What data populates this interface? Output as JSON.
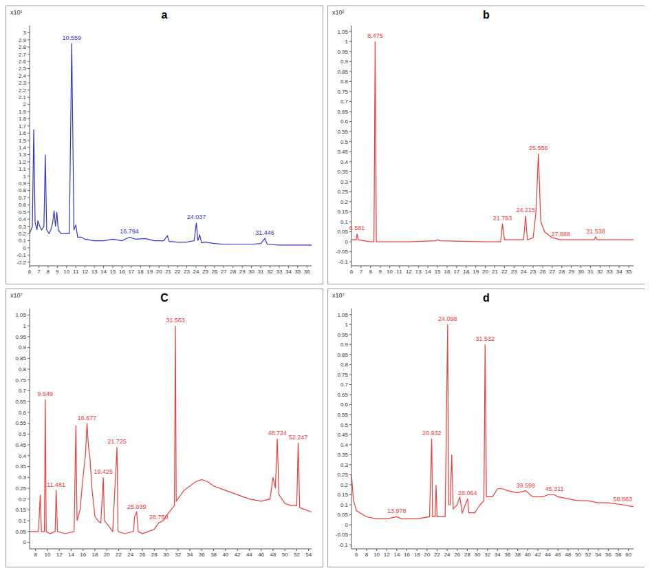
{
  "chart_data": [
    {
      "type": "line",
      "title": "a",
      "ylabel": "x10¹",
      "color": "#3333cc",
      "xlim": [
        6,
        36.5
      ],
      "xticks": [
        6,
        7,
        8,
        9,
        10,
        11,
        12,
        13,
        14,
        15,
        16,
        17,
        18,
        19,
        20,
        21,
        22,
        23,
        24,
        25,
        26,
        27,
        28,
        29,
        30,
        31,
        32,
        33,
        34,
        35,
        36
      ],
      "ylim": [
        -0.25,
        3.1
      ],
      "yticks": [
        -0.2,
        -0.1,
        0,
        0.1,
        0.2,
        0.3,
        0.4,
        0.5,
        0.6,
        0.7,
        0.8,
        0.9,
        1,
        1.1,
        1.2,
        1.3,
        1.4,
        1.5,
        1.6,
        1.7,
        1.8,
        1.9,
        2,
        2.1,
        2.2,
        2.3,
        2.4,
        2.5,
        2.6,
        2.7,
        2.8,
        2.9,
        3
      ],
      "grid": false,
      "x": [
        6,
        6.3,
        6.45,
        6.6,
        6.8,
        6.9,
        7.1,
        7.3,
        7.55,
        7.7,
        7.85,
        8.1,
        8.3,
        8.5,
        8.65,
        8.8,
        8.95,
        9.1,
        9.4,
        9.8,
        10.3,
        10.559,
        10.8,
        11,
        11.2,
        11.6,
        12,
        13,
        14,
        15,
        16,
        16.8,
        17.5,
        18.5,
        19.5,
        20.5,
        20.9,
        21.1,
        22,
        23,
        23.8,
        24.037,
        24.2,
        24.4,
        24.6,
        25,
        26,
        27,
        28,
        29,
        30,
        31,
        31.446,
        31.7,
        33,
        34,
        35,
        36.5
      ],
      "values": [
        0.2,
        0.3,
        1.65,
        0.35,
        0.25,
        0.38,
        0.3,
        0.25,
        0.3,
        1.3,
        0.25,
        0.2,
        0.25,
        0.35,
        0.52,
        0.3,
        0.5,
        0.25,
        0.2,
        0.2,
        0.2,
        2.85,
        0.25,
        0.32,
        0.15,
        0.15,
        0.12,
        0.1,
        0.1,
        0.12,
        0.1,
        0.15,
        0.12,
        0.13,
        0.1,
        0.1,
        0.17,
        0.09,
        0.08,
        0.08,
        0.1,
        0.35,
        0.1,
        0.18,
        0.07,
        0.08,
        0.06,
        0.05,
        0.05,
        0.05,
        0.05,
        0.06,
        0.13,
        0.05,
        0.04,
        0.04,
        0.04,
        0.04
      ],
      "annotations": [
        {
          "x": 10.559,
          "y": 2.85,
          "text": "10.559"
        },
        {
          "x": 16.794,
          "y": 0.15,
          "text": "16.794"
        },
        {
          "x": 24.037,
          "y": 0.35,
          "text": "24.037"
        },
        {
          "x": 31.446,
          "y": 0.13,
          "text": "31.446"
        }
      ]
    },
    {
      "type": "line",
      "title": "b",
      "ylabel": "x10²",
      "color": "#ee3b3b",
      "xlim": [
        6,
        35.5
      ],
      "xticks": [
        6,
        7,
        8,
        9,
        10,
        11,
        12,
        13,
        14,
        15,
        16,
        17,
        18,
        19,
        20,
        21,
        22,
        23,
        24,
        25,
        26,
        27,
        28,
        29,
        30,
        31,
        32,
        33,
        34,
        35
      ],
      "ylim": [
        -0.12,
        1.08
      ],
      "yticks": [
        -0.1,
        -0.05,
        0,
        0.05,
        0.1,
        0.15,
        0.2,
        0.25,
        0.3,
        0.35,
        0.4,
        0.45,
        0.5,
        0.55,
        0.6,
        0.65,
        0.7,
        0.75,
        0.8,
        0.85,
        0.9,
        0.95,
        1,
        1.05
      ],
      "grid": false,
      "x": [
        6,
        6.5,
        6.581,
        6.7,
        8,
        8.35,
        8.475,
        8.6,
        9,
        12,
        14.8,
        15,
        15.3,
        20,
        21.6,
        21.793,
        22,
        24,
        24.215,
        24.4,
        25,
        25.3,
        25.556,
        25.8,
        26.2,
        27,
        27.888,
        29,
        31.4,
        31.538,
        31.7,
        33,
        35.5
      ],
      "values": [
        0.01,
        0.01,
        0.04,
        0.01,
        0,
        0,
        1,
        0,
        0,
        0,
        0.005,
        0.01,
        0.005,
        0,
        0,
        0.09,
        0.01,
        0.01,
        0.13,
        0.01,
        0.02,
        0.15,
        0.44,
        0.1,
        0.05,
        0.02,
        0.01,
        0.01,
        0.01,
        0.025,
        0.01,
        0.01,
        0.01
      ],
      "annotations": [
        {
          "x": 6.581,
          "y": 0.04,
          "text": "6.581"
        },
        {
          "x": 8.475,
          "y": 1,
          "text": "8.475"
        },
        {
          "x": 21.793,
          "y": 0.09,
          "text": "21.793"
        },
        {
          "x": 24.215,
          "y": 0.13,
          "text": "24.215"
        },
        {
          "x": 25.556,
          "y": 0.44,
          "text": "25.556"
        },
        {
          "x": 27.888,
          "y": 0.01,
          "text": "27.888"
        },
        {
          "x": 31.538,
          "y": 0.025,
          "text": "31.538"
        }
      ]
    },
    {
      "type": "line",
      "title": "C",
      "ylabel": "x10⁷",
      "color": "#ee3b3b",
      "xlim": [
        7,
        54.5
      ],
      "xticks": [
        8,
        10,
        12,
        14,
        16,
        18,
        20,
        22,
        24,
        26,
        28,
        30,
        32,
        34,
        36,
        38,
        40,
        42,
        44,
        46,
        48,
        50,
        52,
        54
      ],
      "ylim": [
        -0.03,
        1.08
      ],
      "yticks": [
        0,
        0.05,
        0.1,
        0.15,
        0.2,
        0.25,
        0.3,
        0.35,
        0.4,
        0.45,
        0.5,
        0.55,
        0.6,
        0.65,
        0.7,
        0.75,
        0.8,
        0.85,
        0.9,
        0.95,
        1,
        1.05
      ],
      "grid": false,
      "x": [
        7,
        8.5,
        8.8,
        9,
        9.5,
        9.649,
        9.8,
        10.5,
        11.3,
        11.481,
        11.7,
        13,
        14.5,
        14.8,
        15,
        15.5,
        16,
        16.4,
        16.677,
        16.9,
        17.2,
        17.5,
        18,
        18.5,
        19,
        19.425,
        19.6,
        20.2,
        21,
        21.725,
        21.9,
        23,
        24.5,
        24.7,
        25.039,
        25.3,
        26,
        27,
        28,
        28.75,
        29.5,
        30.5,
        31.4,
        31.563,
        31.7,
        33,
        35,
        36,
        37,
        38,
        40,
        42,
        44,
        46,
        47.5,
        48,
        48.4,
        48.724,
        49,
        49.5,
        50,
        51,
        52,
        52.247,
        52.5,
        53.5,
        54.5
      ],
      "values": [
        0.05,
        0.05,
        0.22,
        0.05,
        0.05,
        0.66,
        0.05,
        0.04,
        0.05,
        0.24,
        0.05,
        0.04,
        0.05,
        0.54,
        0.1,
        0.15,
        0.3,
        0.4,
        0.55,
        0.45,
        0.38,
        0.25,
        0.12,
        0.1,
        0.09,
        0.3,
        0.1,
        0.08,
        0.05,
        0.44,
        0.05,
        0.04,
        0.05,
        0.12,
        0.14,
        0.05,
        0.04,
        0.05,
        0.06,
        0.09,
        0.1,
        0.14,
        0.17,
        1,
        0.19,
        0.24,
        0.28,
        0.29,
        0.28,
        0.26,
        0.24,
        0.22,
        0.2,
        0.19,
        0.2,
        0.3,
        0.25,
        0.48,
        0.22,
        0.2,
        0.18,
        0.17,
        0.17,
        0.46,
        0.16,
        0.15,
        0.14
      ],
      "annotations": [
        {
          "x": 9.649,
          "y": 0.66,
          "text": "9.649"
        },
        {
          "x": 11.481,
          "y": 0.24,
          "text": "11.481"
        },
        {
          "x": 16.677,
          "y": 0.55,
          "text": "16.677"
        },
        {
          "x": 19.425,
          "y": 0.3,
          "text": "19.425"
        },
        {
          "x": 21.725,
          "y": 0.44,
          "text": "21.725"
        },
        {
          "x": 25.039,
          "y": 0.14,
          "text": "25.039"
        },
        {
          "x": 28.75,
          "y": 0.09,
          "text": "28.750"
        },
        {
          "x": 31.563,
          "y": 1,
          "text": "31.563"
        },
        {
          "x": 48.724,
          "y": 0.48,
          "text": "48.724"
        },
        {
          "x": 52.247,
          "y": 0.46,
          "text": "52.247"
        }
      ]
    },
    {
      "type": "line",
      "title": "d",
      "ylabel": "x10⁷",
      "color": "#ee3b3b",
      "xlim": [
        5,
        61
      ],
      "xticks": [
        6,
        8,
        10,
        12,
        14,
        16,
        18,
        20,
        22,
        24,
        26,
        28,
        30,
        32,
        34,
        36,
        38,
        40,
        42,
        44,
        46,
        48,
        50,
        52,
        54,
        56,
        58,
        60
      ],
      "ylim": [
        -0.12,
        1.08
      ],
      "yticks": [
        -0.1,
        -0.05,
        0,
        0.05,
        0.1,
        0.15,
        0.2,
        0.25,
        0.3,
        0.35,
        0.4,
        0.45,
        0.5,
        0.55,
        0.6,
        0.65,
        0.7,
        0.75,
        0.8,
        0.85,
        0.9,
        0.95,
        1,
        1.05
      ],
      "grid": false,
      "x": [
        5,
        5.4,
        6,
        8,
        10,
        12,
        13.978,
        15,
        18,
        20.5,
        20.932,
        21.1,
        21.6,
        21.8,
        22,
        23.6,
        24.098,
        24.3,
        24.6,
        24.9,
        25.2,
        26,
        26.5,
        27,
        28.064,
        28.3,
        29.5,
        30.5,
        31.3,
        31.532,
        31.8,
        33,
        34,
        35,
        36,
        38,
        39.599,
        41,
        43,
        44,
        45.311,
        46,
        48,
        50,
        52,
        54,
        56,
        58.863,
        61
      ],
      "values": [
        0.25,
        0.12,
        0.07,
        0.04,
        0.03,
        0.03,
        0.04,
        0.03,
        0.03,
        0.04,
        0.43,
        0.04,
        0.04,
        0.2,
        0.04,
        0.04,
        1,
        0.1,
        0.1,
        0.35,
        0.08,
        0.1,
        0.14,
        0.06,
        0.13,
        0.06,
        0.06,
        0.1,
        0.12,
        0.9,
        0.14,
        0.14,
        0.18,
        0.18,
        0.17,
        0.16,
        0.17,
        0.14,
        0.14,
        0.15,
        0.15,
        0.14,
        0.13,
        0.12,
        0.12,
        0.11,
        0.11,
        0.1,
        0.09
      ],
      "annotations": [
        {
          "x": 13.978,
          "y": 0.04,
          "text": "13.978"
        },
        {
          "x": 20.932,
          "y": 0.43,
          "text": "20.932"
        },
        {
          "x": 24.098,
          "y": 1,
          "text": "24.098"
        },
        {
          "x": 28.064,
          "y": 0.13,
          "text": "28.064"
        },
        {
          "x": 31.532,
          "y": 0.9,
          "text": "31.532"
        },
        {
          "x": 39.599,
          "y": 0.17,
          "text": "39.599"
        },
        {
          "x": 45.311,
          "y": 0.15,
          "text": "45.311"
        },
        {
          "x": 58.863,
          "y": 0.1,
          "text": "58.863"
        }
      ]
    }
  ]
}
